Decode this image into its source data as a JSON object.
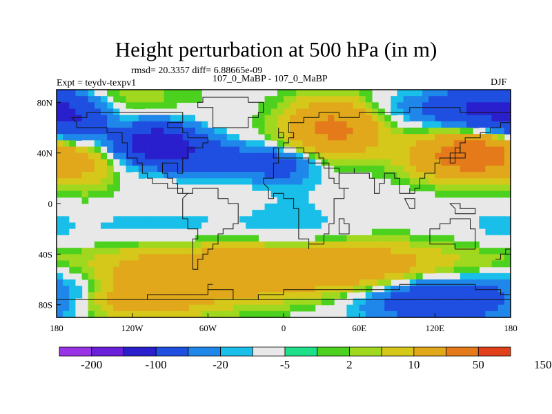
{
  "chart_data": {
    "type": "heatmap",
    "title": "Height perturbation at 500 hPa (in m)",
    "stats": "rmsd= 20.3357 diff= 6.88665e-09",
    "left_label": "Expt = teydv-texpv1",
    "center_label": "107_0_MaBP - 107_0_MaBP",
    "right_label": "DJF",
    "x_range": [
      -180,
      180
    ],
    "y_range": [
      -90,
      90
    ],
    "x_tick_values": [
      -180,
      -120,
      -60,
      0,
      60,
      120,
      180
    ],
    "x_tick_labels": [
      "180",
      "120W",
      "60W",
      "0",
      "60E",
      "120E",
      "180"
    ],
    "y_tick_values": [
      80,
      40,
      0,
      -40,
      -80
    ],
    "y_tick_labels": [
      "80N",
      "40N",
      "0",
      "40S",
      "80S"
    ],
    "colorbar_labels": [
      "-200",
      "-100",
      "-20",
      "-5",
      "2",
      "10",
      "50",
      "150"
    ],
    "colors": [
      "#9933e6",
      "#6a1fd8",
      "#2a1fcc",
      "#1f4fe0",
      "#1f86ea",
      "#19bfe8",
      "#e8e8e8",
      "#1fe08a",
      "#4cd11f",
      "#9fd81f",
      "#d6c81a",
      "#e0a81a",
      "#e57a1a",
      "#e0401a"
    ],
    "features": [
      {
        "lon": -165,
        "lat": 65,
        "value": -40,
        "rx": 18,
        "ry": 15
      },
      {
        "lon": -100,
        "lat": 48,
        "value": -80,
        "rx": 22,
        "ry": 10
      },
      {
        "lon": -60,
        "lat": 35,
        "value": -30,
        "rx": 30,
        "ry": 10
      },
      {
        "lon": 0,
        "lat": 30,
        "value": -25,
        "rx": 20,
        "ry": 10
      },
      {
        "lon": 110,
        "lat": 75,
        "value": -15,
        "rx": 40,
        "ry": 10
      },
      {
        "lon": 160,
        "lat": 75,
        "value": -50,
        "rx": 25,
        "ry": 12
      },
      {
        "lon": -155,
        "lat": 30,
        "value": 15,
        "rx": 15,
        "ry": 15
      },
      {
        "lon": 40,
        "lat": 60,
        "value": 60,
        "rx": 25,
        "ry": 15
      },
      {
        "lon": 150,
        "lat": 38,
        "value": 80,
        "rx": 30,
        "ry": 12
      },
      {
        "lon": -130,
        "lat": 85,
        "value": 8,
        "rx": 40,
        "ry": 8
      },
      {
        "lon": -100,
        "lat": -20,
        "value": -8,
        "rx": 60,
        "ry": 12
      },
      {
        "lon": 10,
        "lat": -20,
        "value": -7,
        "rx": 30,
        "ry": 25
      },
      {
        "lon": 170,
        "lat": -18,
        "value": -6,
        "rx": 15,
        "ry": 10
      },
      {
        "lon": -60,
        "lat": -55,
        "value": 40,
        "rx": 70,
        "ry": 15
      },
      {
        "lon": 60,
        "lat": -50,
        "value": 35,
        "rx": 60,
        "ry": 12
      },
      {
        "lon": -170,
        "lat": -70,
        "value": -20,
        "rx": 25,
        "ry": 15
      },
      {
        "lon": 120,
        "lat": -75,
        "value": -40,
        "rx": 40,
        "ry": 15
      },
      {
        "lon": -120,
        "lat": -78,
        "value": 25,
        "rx": 40,
        "ry": 10
      }
    ]
  }
}
